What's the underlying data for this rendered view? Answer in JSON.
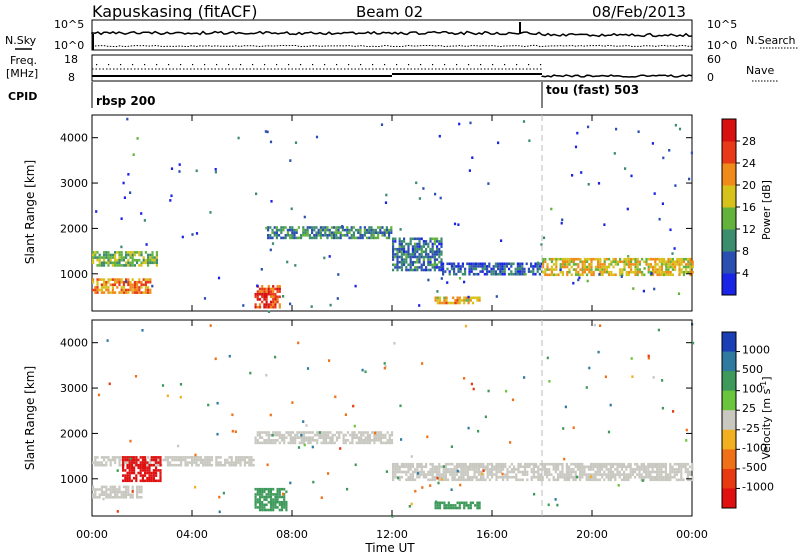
{
  "header": {
    "station": "Kapuskasing (fitACF)",
    "beam": "Beam 02",
    "date": "08/Feb/2013"
  },
  "top_panel": {
    "left_label": "N.Sky",
    "right_label": "N.Search",
    "left_ticks": [
      "10^5",
      "10^0"
    ],
    "right_ticks": [
      "10^5",
      "10^0"
    ]
  },
  "freq_panel": {
    "left_label_1": "Freq.",
    "left_label_2": "[MHz]",
    "right_label": "Nave",
    "left_ticks": [
      "18",
      "8"
    ],
    "right_ticks": [
      "60",
      "0"
    ]
  },
  "cpid": {
    "label": "CPID",
    "segments": [
      "rbsp 200",
      "tou (fast) 503"
    ]
  },
  "x_axis": {
    "label": "Time UT",
    "ticks": [
      "00:00",
      "04:00",
      "08:00",
      "12:00",
      "16:00",
      "20:00",
      "00:00"
    ]
  },
  "range_axis": {
    "label": "Slant Range [km]",
    "ticks": [
      "1000",
      "2000",
      "3000",
      "4000"
    ]
  },
  "power_scale": {
    "label": "Power [dB]",
    "ticks": [
      "4",
      "8",
      "12",
      "16",
      "20",
      "24",
      "28"
    ],
    "colors": [
      "#1a24e6",
      "#2b4fb0",
      "#3c8c6e",
      "#63b23c",
      "#d7c21c",
      "#f08a18",
      "#e83a18",
      "#d81010"
    ]
  },
  "velocity_scale": {
    "label": "Velocity [m s^-1]",
    "ticks": [
      "1000",
      "500",
      "100",
      "25",
      "-25",
      "-100",
      "-500",
      "-1000"
    ],
    "colors": [
      "#1a3fb5",
      "#2f7ba0",
      "#3e9a5a",
      "#6ac43c",
      "#c8c8c0",
      "#f0b020",
      "#f07018",
      "#e83a10",
      "#e01010"
    ]
  },
  "chart_data": [
    {
      "type": "heatmap",
      "title": "Power",
      "xlabel": "Time UT",
      "ylabel": "Slant Range [km]",
      "xlim": [
        "00:00",
        "24:00"
      ],
      "ylim": [
        180,
        4500
      ],
      "colorbar": "Power [dB]",
      "clim": [
        0,
        32
      ],
      "features": [
        {
          "t0": 0.0,
          "t1": 2.6,
          "r0": 1200,
          "r1": 1500,
          "value": 14
        },
        {
          "t0": 0.0,
          "t1": 2.3,
          "r0": 600,
          "r1": 900,
          "value": 22
        },
        {
          "t0": 6.5,
          "t1": 7.5,
          "r0": 250,
          "r1": 750,
          "value": 26
        },
        {
          "t0": 7.0,
          "t1": 12.0,
          "r0": 1800,
          "r1": 2050,
          "value": 10
        },
        {
          "t0": 12.0,
          "t1": 14.0,
          "r0": 1100,
          "r1": 1800,
          "value": 8
        },
        {
          "t0": 14.0,
          "t1": 18.0,
          "r0": 1000,
          "r1": 1250,
          "value": 6
        },
        {
          "t0": 18.0,
          "t1": 24.0,
          "r0": 950,
          "r1": 1350,
          "value": 18
        },
        {
          "t0": 13.7,
          "t1": 15.5,
          "r0": 350,
          "r1": 500,
          "value": 20
        }
      ]
    },
    {
      "type": "heatmap",
      "title": "Velocity",
      "xlabel": "Time UT",
      "ylabel": "Slant Range [km]",
      "xlim": [
        "00:00",
        "24:00"
      ],
      "ylim": [
        180,
        4500
      ],
      "colorbar": "Velocity [m s^-1]",
      "clim": [
        -1000,
        1000
      ],
      "features": [
        {
          "t0": 0.0,
          "t1": 6.5,
          "r0": 1300,
          "r1": 1500,
          "value": 0
        },
        {
          "t0": 0.0,
          "t1": 2.0,
          "r0": 600,
          "r1": 850,
          "value": 0
        },
        {
          "t0": 1.2,
          "t1": 2.7,
          "r0": 950,
          "r1": 1500,
          "value": -800
        },
        {
          "t0": 6.5,
          "t1": 12.0,
          "r0": 1800,
          "r1": 2050,
          "value": 0
        },
        {
          "t0": 12.0,
          "t1": 24.0,
          "r0": 1000,
          "r1": 1350,
          "value": 0
        },
        {
          "t0": 6.5,
          "t1": 7.8,
          "r0": 300,
          "r1": 800,
          "value": 100
        },
        {
          "t0": 13.7,
          "t1": 15.5,
          "r0": 350,
          "r1": 500,
          "value": 100
        }
      ]
    }
  ]
}
